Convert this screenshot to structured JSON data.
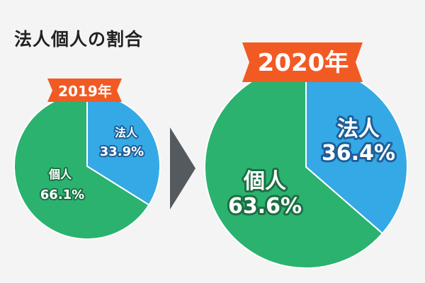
{
  "title": "法人個人の割合",
  "colors": {
    "background": "#f4f4f4",
    "individual": "#2bb26e",
    "corporate": "#35a9e5",
    "individual_outline": "#1c6f43",
    "corporate_outline": "#1d5f9a",
    "badge": "#f25a24",
    "arrow": "#555a5f"
  },
  "chart_data": [
    {
      "type": "pie",
      "title": "2019年",
      "slices": [
        {
          "label": "法人",
          "value": 33.9,
          "display": "33.9%"
        },
        {
          "label": "個人",
          "value": 66.1,
          "display": "66.1%"
        }
      ]
    },
    {
      "type": "pie",
      "title": "2020年",
      "slices": [
        {
          "label": "法人",
          "value": 36.4,
          "display": "36.4%"
        },
        {
          "label": "個人",
          "value": 63.6,
          "display": "63.6%"
        }
      ]
    }
  ]
}
